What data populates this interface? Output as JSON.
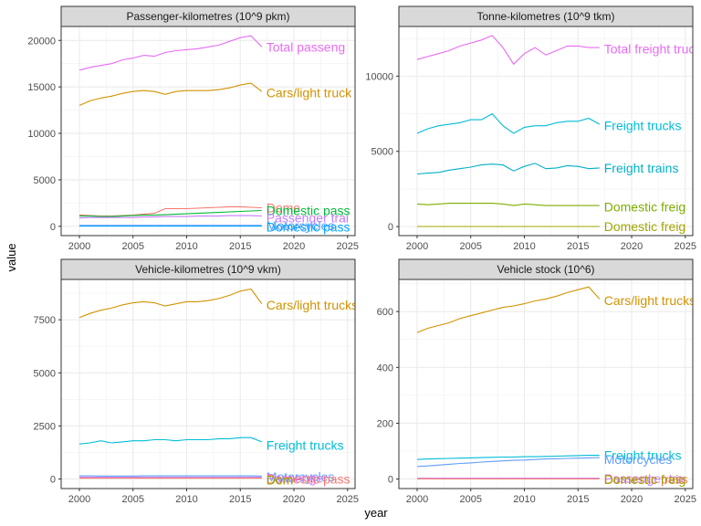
{
  "chart_data": {
    "type": "line",
    "xlabel": "year",
    "ylabel": "value",
    "grid": true,
    "layout": "2x2 facets, free y scales",
    "colors": {
      "Total passenger": "#E76BF3",
      "Cars/light trucks": "#D39200",
      "Domestic passenger": "#00A5FF",
      "Passenger trains": "#C77CFF",
      "Motorcycles": "#619CFF",
      "Domestic freight": "#7CAE00",
      "Freight trucks": "#00BCD8",
      "Freight trains": "#00B0C6",
      "Buses": "#00BA38",
      "Total freight": "#E76BF3"
    },
    "panels": [
      {
        "title": "Passenger-kilometres (10^9 pkm)",
        "xlim": [
          1998.3,
          2025.7
        ],
        "x_ticks": [
          2000,
          2005,
          2010,
          2015,
          2020,
          2025
        ],
        "ylim": [
          -1000,
          21500
        ],
        "y_ticks": [
          0,
          5000,
          10000,
          15000,
          20000
        ],
        "x": [
          2000,
          2001,
          2002,
          2003,
          2004,
          2005,
          2006,
          2007,
          2008,
          2009,
          2010,
          2011,
          2012,
          2013,
          2014,
          2015,
          2016,
          2017
        ],
        "series": [
          {
            "name": "Total passeng",
            "color": "#E76BF3",
            "values": [
              16800,
              17100,
              17300,
              17500,
              17900,
              18100,
              18400,
              18300,
              18700,
              18900,
              19000,
              19100,
              19300,
              19500,
              19900,
              20300,
              20500,
              19300
            ]
          },
          {
            "name": "Cars/light truck",
            "color": "#D39200",
            "values": [
              13000,
              13500,
              13800,
              14000,
              14300,
              14500,
              14600,
              14500,
              14200,
              14500,
              14600,
              14600,
              14600,
              14700,
              14900,
              15200,
              15400,
              14500
            ]
          },
          {
            "name": "Dome",
            "color": "#F8766D",
            "values": [
              1200,
              1150,
              1100,
              1100,
              1150,
              1200,
              1300,
              1400,
              1900,
              1900,
              1900,
              1950,
              2000,
              2050,
              2100,
              2100,
              2050,
              2000
            ]
          },
          {
            "name": "Domestic pass",
            "color": "#00BA38",
            "values": [
              1100,
              1100,
              1050,
              1050,
              1100,
              1150,
              1200,
              1200,
              1250,
              1300,
              1350,
              1400,
              1450,
              1500,
              1550,
              1600,
              1650,
              1700
            ]
          },
          {
            "name": "Passenger trai",
            "color": "#C77CFF",
            "values": [
              900,
              950,
              950,
              950,
              950,
              950,
              1000,
              1000,
              1050,
              1050,
              1050,
              1100,
              1100,
              1100,
              1150,
              1150,
              1150,
              1100
            ]
          },
          {
            "name": "Motorcycles",
            "color": "#619CFF",
            "values": [
              100,
              100,
              100,
              100,
              100,
              100,
              100,
              100,
              100,
              100,
              100,
              100,
              100,
              100,
              100,
              100,
              100,
              100
            ]
          },
          {
            "name": "Domestic pass",
            "color": "#00A5FF",
            "values": [
              20,
              20,
              20,
              20,
              20,
              20,
              20,
              20,
              20,
              20,
              20,
              20,
              20,
              20,
              20,
              20,
              20,
              20
            ]
          }
        ],
        "labels": [
          {
            "text": "Total passeng",
            "color": "#E76BF3",
            "y": 19300
          },
          {
            "text": "Cars/light truck",
            "color": "#D39200",
            "y": 14400
          },
          {
            "text": "Dome",
            "color": "#F8766D",
            "y": 2000
          },
          {
            "text": "Domestic pass",
            "color": "#00BA38",
            "y": 1700
          },
          {
            "text": "Passenger trai",
            "color": "#C77CFF",
            "y": 900
          },
          {
            "text": "Motorcycles",
            "color": "#619CFF",
            "y": 100
          },
          {
            "text": "Domestic pass",
            "color": "#00A5FF",
            "y": -50
          }
        ]
      },
      {
        "title": "Tonne-kilometres (10^9 tkm)",
        "xlim": [
          1998.3,
          2025.7
        ],
        "x_ticks": [
          2000,
          2005,
          2010,
          2015,
          2020,
          2025
        ],
        "ylim": [
          -600,
          13300
        ],
        "y_ticks": [
          0,
          5000,
          10000
        ],
        "x": [
          2000,
          2001,
          2002,
          2003,
          2004,
          2005,
          2006,
          2007,
          2008,
          2009,
          2010,
          2011,
          2012,
          2013,
          2014,
          2015,
          2016,
          2017
        ],
        "series": [
          {
            "name": "Total freight",
            "color": "#E76BF3",
            "values": [
              11100,
              11300,
              11500,
              11700,
              12000,
              12200,
              12400,
              12700,
              11900,
              10800,
              11500,
              11900,
              11400,
              11700,
              12000,
              12000,
              11900,
              11900
            ]
          },
          {
            "name": "Freight trucks",
            "color": "#00BCD8",
            "values": [
              6200,
              6500,
              6700,
              6800,
              6900,
              7100,
              7100,
              7500,
              6700,
              6200,
              6600,
              6700,
              6700,
              6900,
              7000,
              7000,
              7200,
              6800
            ]
          },
          {
            "name": "Freight trains",
            "color": "#00B0C6",
            "values": [
              3500,
              3550,
              3600,
              3750,
              3850,
              3950,
              4100,
              4150,
              4100,
              3700,
              4000,
              4200,
              3850,
              3900,
              4050,
              4000,
              3850,
              3900
            ]
          },
          {
            "name": "Domestic freig",
            "color": "#7CAE00",
            "values": [
              1500,
              1450,
              1500,
              1550,
              1550,
              1550,
              1550,
              1550,
              1500,
              1400,
              1500,
              1450,
              1400,
              1400,
              1400,
              1400,
              1400,
              1400
            ]
          },
          {
            "name": "Domestic freig",
            "color": "#A3A500",
            "values": [
              10,
              10,
              10,
              10,
              10,
              10,
              10,
              10,
              10,
              10,
              10,
              10,
              10,
              10,
              10,
              10,
              10,
              10
            ]
          }
        ],
        "labels": [
          {
            "text": "Total freight truc",
            "color": "#E76BF3",
            "y": 11800
          },
          {
            "text": "Freight trucks",
            "color": "#00BCD8",
            "y": 6700
          },
          {
            "text": "Freight trains",
            "color": "#00B0C6",
            "y": 3900
          },
          {
            "text": "Domestic freig",
            "color": "#7CAE00",
            "y": 1300
          },
          {
            "text": "Domestic freig",
            "color": "#A3A500",
            "y": 0
          }
        ]
      },
      {
        "title": "Vehicle-kilometres (10^9 vkm)",
        "xlim": [
          1998.3,
          2025.7
        ],
        "x_ticks": [
          2000,
          2005,
          2010,
          2015,
          2020,
          2025
        ],
        "ylim": [
          -450,
          9400
        ],
        "y_ticks": [
          0,
          2500,
          5000,
          7500
        ],
        "x": [
          2000,
          2001,
          2002,
          2003,
          2004,
          2005,
          2006,
          2007,
          2008,
          2009,
          2010,
          2011,
          2012,
          2013,
          2014,
          2015,
          2016,
          2017
        ],
        "series": [
          {
            "name": "Cars/light trucks",
            "color": "#D39200",
            "values": [
              7600,
              7800,
              7950,
              8050,
              8200,
              8300,
              8350,
              8300,
              8150,
              8250,
              8350,
              8350,
              8400,
              8500,
              8650,
              8850,
              8950,
              8250
            ]
          },
          {
            "name": "Freight trucks",
            "color": "#00BCD8",
            "values": [
              1650,
              1700,
              1800,
              1700,
              1750,
              1800,
              1800,
              1850,
              1850,
              1800,
              1850,
              1850,
              1850,
              1900,
              1900,
              1950,
              1950,
              1750
            ]
          },
          {
            "name": "Motorcycles",
            "color": "#619CFF",
            "values": [
              150,
              150,
              140,
              140,
              140,
              140,
              150,
              150,
              150,
              150,
              150,
              150,
              150,
              150,
              150,
              150,
              150,
              140
            ]
          },
          {
            "name": "Buses",
            "color": "#C77CFF",
            "values": [
              80,
              80,
              80,
              80,
              80,
              80,
              80,
              80,
              80,
              80,
              80,
              80,
              80,
              80,
              80,
              80,
              80,
              80
            ]
          },
          {
            "name": "Domestic",
            "color": "#F8766D",
            "values": [
              40,
              40,
              40,
              40,
              40,
              40,
              40,
              40,
              40,
              40,
              40,
              40,
              40,
              40,
              40,
              40,
              40,
              40
            ]
          }
        ],
        "labels": [
          {
            "text": "Cars/light trucks",
            "color": "#D39200",
            "y": 8200
          },
          {
            "text": "Freight trucks",
            "color": "#00BCD8",
            "y": 1600
          },
          {
            "text": "Motorcycles",
            "color": "#619CFF",
            "y": 100
          },
          {
            "text": "Passenger",
            "color": "#C77CFF",
            "y": 50
          },
          {
            "text": "Domestic pass",
            "color": "#F8766D",
            "y": 0
          },
          {
            "text": "Dom",
            "color": "#A3A500",
            "y": -50
          }
        ]
      },
      {
        "title": "Vehicle stock (10^6)",
        "xlim": [
          1998.3,
          2025.7
        ],
        "x_ticks": [
          2000,
          2005,
          2010,
          2015,
          2020,
          2025
        ],
        "ylim": [
          -34,
          715
        ],
        "y_ticks": [
          0,
          200,
          400,
          600
        ],
        "x": [
          2000,
          2001,
          2002,
          2003,
          2004,
          2005,
          2006,
          2007,
          2008,
          2009,
          2010,
          2011,
          2012,
          2013,
          2014,
          2015,
          2016,
          2017
        ],
        "series": [
          {
            "name": "Cars/light trucks",
            "color": "#D39200",
            "values": [
              525,
              540,
              550,
              560,
              575,
              585,
              595,
              605,
              615,
              620,
              628,
              638,
              645,
              655,
              668,
              678,
              688,
              645
            ]
          },
          {
            "name": "Freight trucks",
            "color": "#00BCD8",
            "values": [
              70,
              72,
              73,
              74,
              75,
              76,
              77,
              78,
              79,
              79,
              80,
              80,
              81,
              82,
              83,
              84,
              85,
              85
            ]
          },
          {
            "name": "Motorcycles",
            "color": "#619CFF",
            "values": [
              45,
              47,
              50,
              53,
              56,
              58,
              61,
              63,
              65,
              67,
              68,
              70,
              72,
              73,
              74,
              75,
              76,
              77
            ]
          },
          {
            "name": "Buses",
            "color": "#C77CFF",
            "values": [
              3,
              3,
              3,
              3,
              3,
              3,
              3,
              3,
              3,
              3,
              3,
              3,
              3,
              3,
              3,
              3,
              3,
              3
            ]
          },
          {
            "name": "Domestic",
            "color": "#F8766D",
            "values": [
              1,
              1,
              1,
              1,
              1,
              1,
              1,
              1,
              1,
              1,
              1,
              1,
              1,
              1,
              1,
              1,
              1,
              1
            ]
          }
        ],
        "labels": [
          {
            "text": "Cars/light trucks",
            "color": "#D39200",
            "y": 640
          },
          {
            "text": "Freight trucks",
            "color": "#00BCD8",
            "y": 85
          },
          {
            "text": "Motorcycles",
            "color": "#619CFF",
            "y": 70
          },
          {
            "text": "Passenger tra",
            "color": "#C77CFF",
            "y": 2
          },
          {
            "text": "Domestic pass",
            "color": "#F8766D",
            "y": 0
          },
          {
            "text": "Domestic freig",
            "color": "#A3A500",
            "y": -2
          }
        ]
      }
    ]
  }
}
